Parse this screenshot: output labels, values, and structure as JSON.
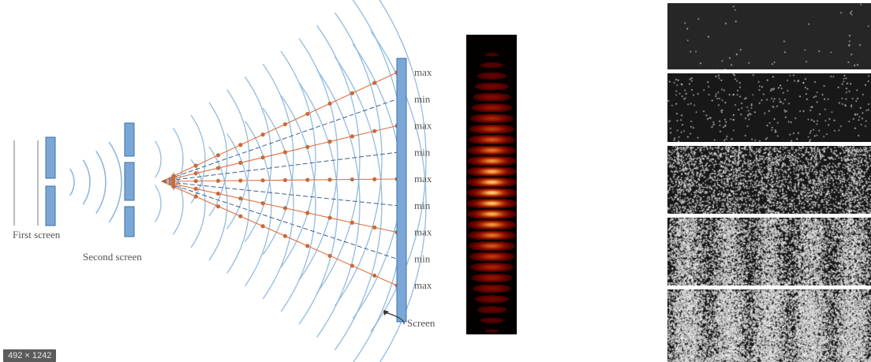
{
  "diagram": {
    "labels": {
      "first_screen": "First screen",
      "second_screen": "Second screen",
      "screen": "Screen"
    },
    "screen_markers": [
      "max",
      "min",
      "max",
      "min",
      "max",
      "min",
      "max",
      "min",
      "max"
    ],
    "colors": {
      "wavefront": "#8fb8dc",
      "barrier": "#7aa7d6",
      "barrier_edge": "#3f6fa5",
      "max_line": "#e07040",
      "min_line": "#3d5f8a",
      "intersection": "#c86a3a"
    }
  },
  "fringe_photo": {
    "colors": {
      "background": "#050000",
      "fringe": "#ff6a10",
      "core": "#ffd080"
    }
  },
  "image_badge": {
    "text": "492 × 1242"
  },
  "buildup_panels": {
    "back_icon": "chevron-left-icon",
    "panels": [
      {
        "density": 0.004
      },
      {
        "density": 0.03
      },
      {
        "density": 0.35
      },
      {
        "density": 0.55
      },
      {
        "density": 0.8
      }
    ]
  }
}
